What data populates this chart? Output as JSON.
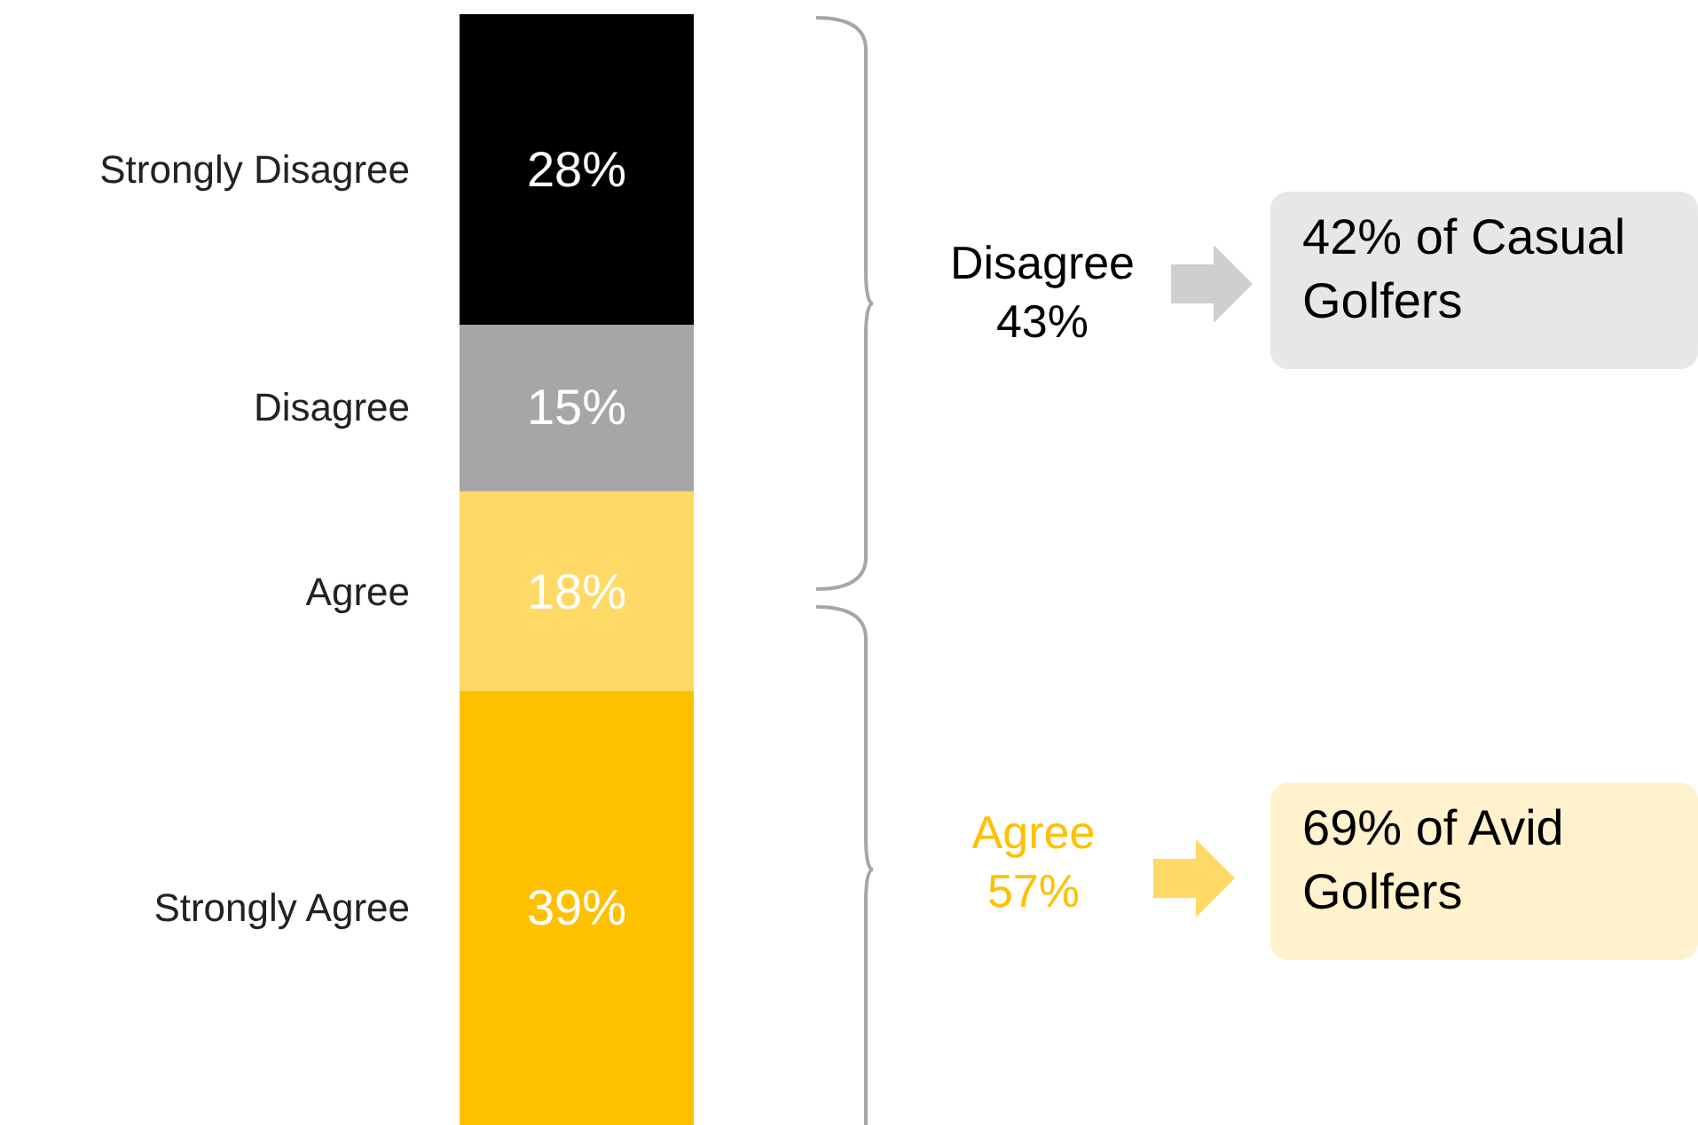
{
  "chart_data": {
    "type": "bar",
    "stacked": true,
    "categories": [
      null
    ],
    "ylim": [
      0,
      100
    ],
    "tick_labels": false,
    "series": [
      {
        "name": "Strongly Agree",
        "color": "#ffc000",
        "values": [
          39
        ],
        "value_labels": [
          "39%"
        ]
      },
      {
        "name": "Agree",
        "color": "#ffd966",
        "values": [
          18
        ],
        "value_labels": [
          "18%"
        ]
      },
      {
        "name": "Disagree",
        "color": "#a6a6a6",
        "values": [
          15
        ],
        "value_labels": [
          "15%"
        ]
      },
      {
        "name": "Strongly Disagree",
        "color": "#000000",
        "values": [
          28
        ],
        "value_labels": [
          "28%"
        ]
      }
    ],
    "annotations": [
      "Disagree 43%",
      "42% of Casual Golfers",
      "Agree 57%",
      "69% of Avid Golfers"
    ]
  }
}
